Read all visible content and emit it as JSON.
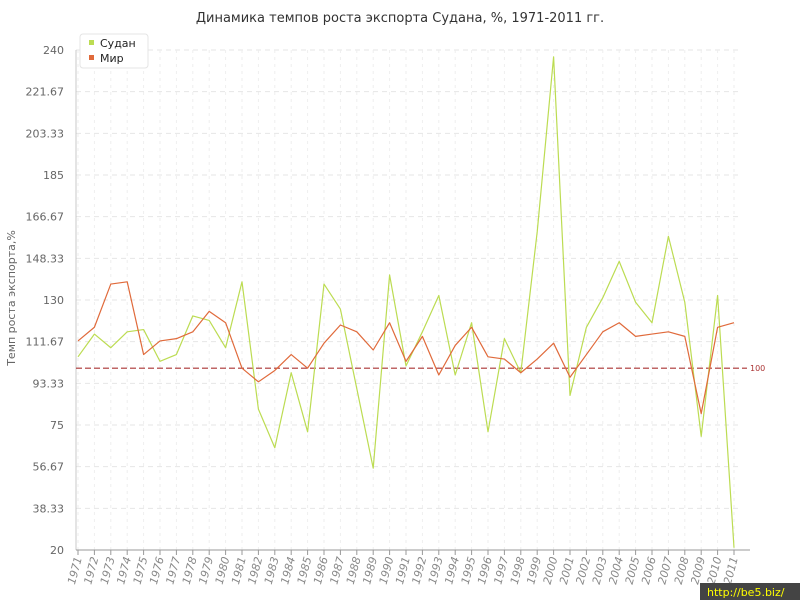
{
  "chart_data": {
    "type": "line",
    "title": "Динамика темпов роста экспорта Судана, %, 1971-2011 гг.",
    "ylabel": "Темп роста экспорта,%",
    "xlabel": "",
    "ylim": [
      20,
      240
    ],
    "yticks": [
      "20",
      "38.33",
      "56.67",
      "75",
      "93.33",
      "111.67",
      "130",
      "148.33",
      "166.67",
      "185",
      "203.33",
      "221.67",
      "240"
    ],
    "categories": [
      "1971",
      "1972",
      "1973",
      "1974",
      "1975",
      "1976",
      "1977",
      "1978",
      "1979",
      "1980",
      "1981",
      "1982",
      "1983",
      "1984",
      "1985",
      "1986",
      "1987",
      "1988",
      "1989",
      "1990",
      "1991",
      "1992",
      "1993",
      "1994",
      "1995",
      "1996",
      "1997",
      "1998",
      "1999",
      "2000",
      "2001",
      "2002",
      "2003",
      "2004",
      "2005",
      "2006",
      "2007",
      "2008",
      "2009",
      "2010",
      "2011"
    ],
    "series": [
      {
        "name": "Судан",
        "color": "#bcdc52",
        "values": [
          105,
          115,
          109,
          116,
          117,
          103,
          106,
          123,
          121,
          109,
          138,
          82,
          65,
          98,
          72,
          137,
          126,
          91,
          56,
          141,
          101,
          116,
          132,
          97,
          120,
          72,
          113,
          98,
          160,
          237,
          88,
          118,
          131,
          147,
          129,
          120,
          158,
          129,
          70,
          132,
          21
        ]
      },
      {
        "name": "Мир",
        "color": "#e06a3b",
        "values": [
          112,
          118,
          137,
          138,
          106,
          112,
          113,
          116,
          125,
          120,
          100,
          94,
          99,
          106,
          100,
          111,
          119,
          116,
          108,
          120,
          103,
          114,
          97,
          110,
          118,
          105,
          104,
          98,
          104,
          111,
          96,
          106,
          116,
          120,
          114,
          115,
          116,
          114,
          80,
          118,
          120
        ]
      }
    ],
    "reference_line": {
      "value": 100,
      "label": "100",
      "color": "#aa3333"
    },
    "grid": true,
    "legend_position": "top-left"
  },
  "watermark": "http://be5.biz/"
}
